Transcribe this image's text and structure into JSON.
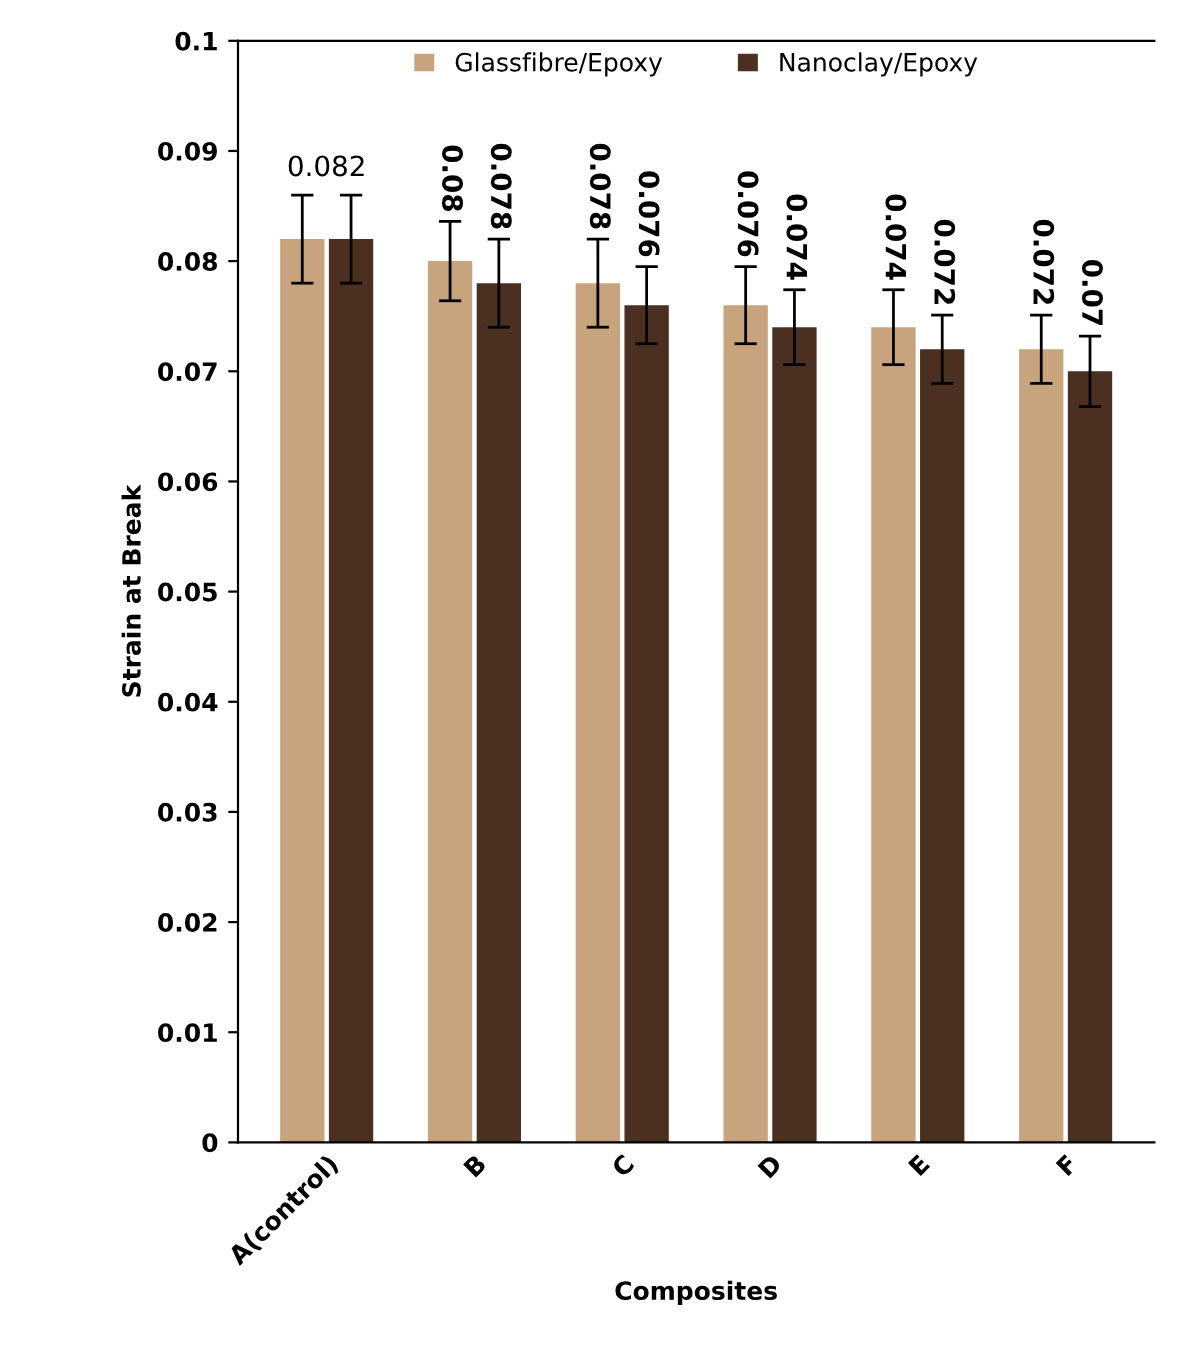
{
  "chart_data": {
    "type": "bar",
    "xlabel": "Composites",
    "ylabel": "Strain at Break",
    "categories": [
      "A(control)",
      "B",
      "C",
      "D",
      "E",
      "F"
    ],
    "series": [
      {
        "name": "Glassfibre/Epoxy",
        "color": "#c8a47e",
        "values": [
          0.082,
          0.08,
          0.078,
          0.076,
          0.074,
          0.072
        ],
        "errors": [
          0.004,
          0.0036,
          0.004,
          0.0035,
          0.0034,
          0.0031
        ],
        "value_labels": [
          "0.082",
          "0.08",
          "0.078",
          "0.076",
          "0.074",
          "0.072"
        ]
      },
      {
        "name": "Nanoclay/Epoxy",
        "color": "#4b2f21",
        "values": [
          0.082,
          0.078,
          0.076,
          0.074,
          0.072,
          0.07
        ],
        "errors": [
          0.004,
          0.004,
          0.0035,
          0.0034,
          0.0031,
          0.0032
        ],
        "value_labels": [
          null,
          "0.078",
          "0.076",
          "0.074",
          "0.072",
          "0.07"
        ]
      }
    ],
    "ylim": [
      0,
      0.1
    ],
    "yticks": [
      0,
      0.01,
      0.02,
      0.03,
      0.04,
      0.05,
      0.06,
      0.07,
      0.08,
      0.09,
      0.1
    ],
    "grid": false,
    "legend": "top"
  }
}
